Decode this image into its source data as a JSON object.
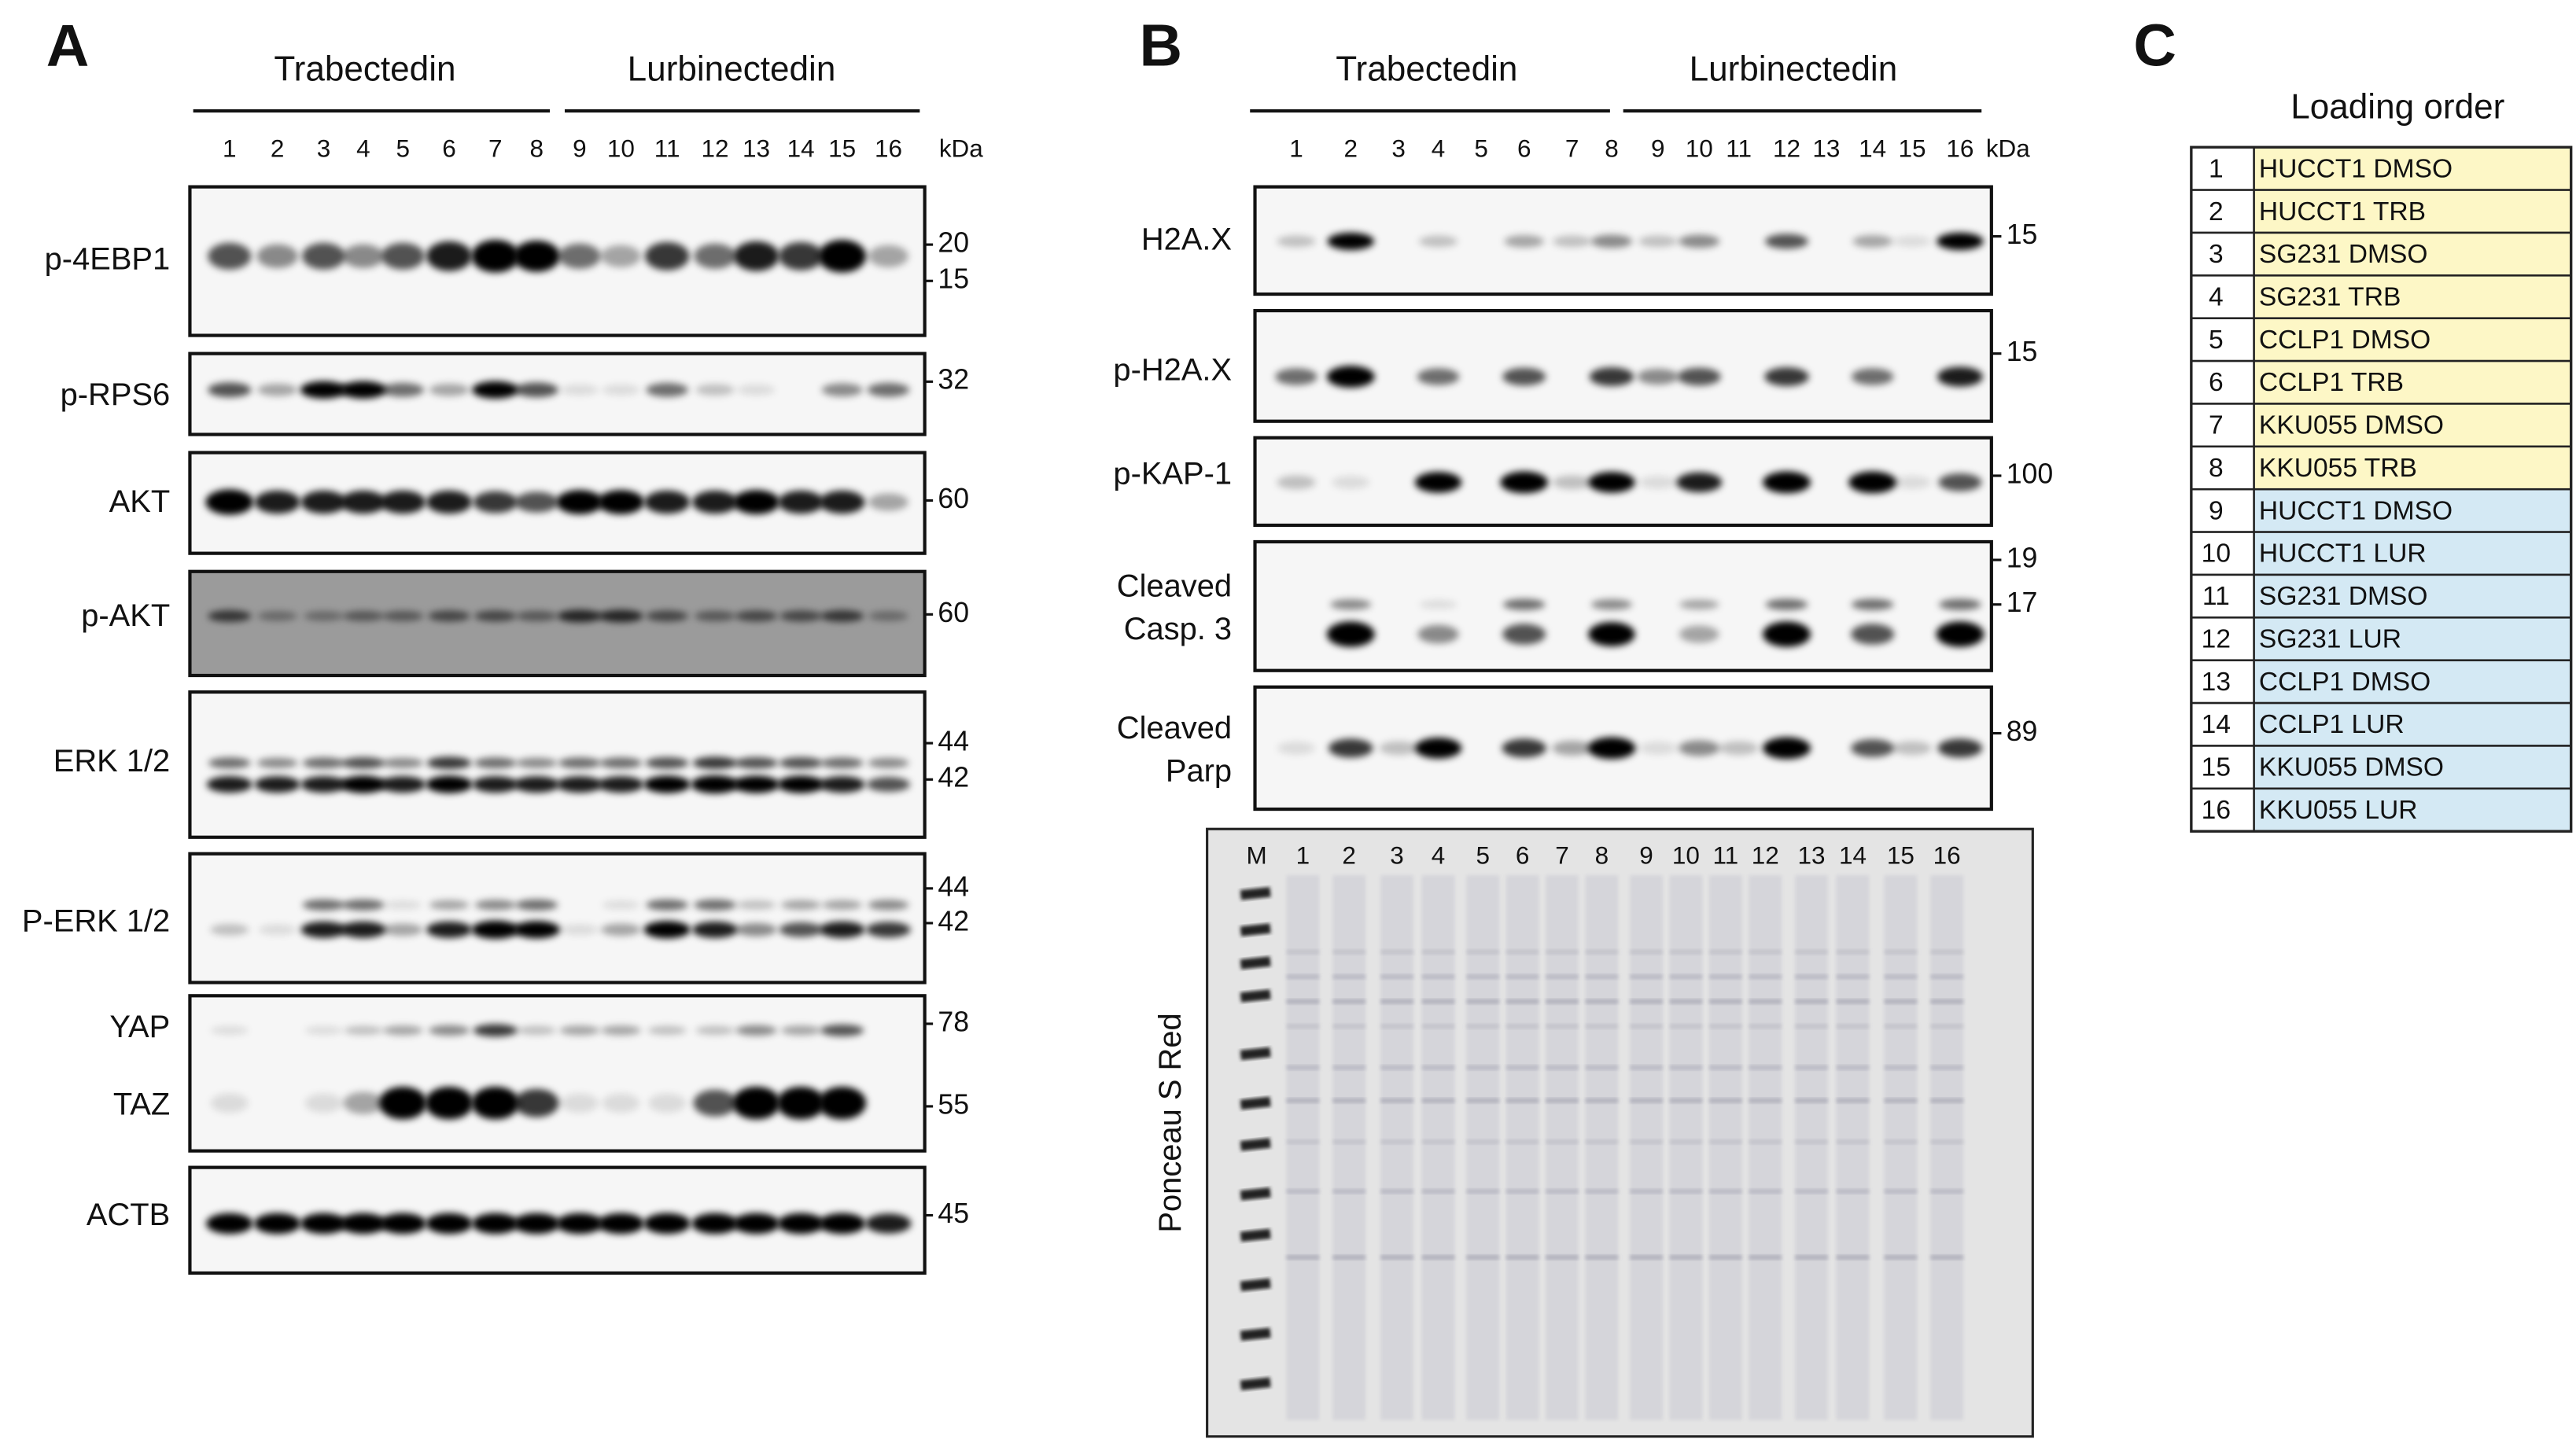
{
  "panel_a": {
    "label": "A",
    "groups": [
      "Trabectedin",
      "Lurbinectedin"
    ],
    "lanes": [
      1,
      2,
      3,
      4,
      5,
      6,
      7,
      8,
      9,
      10,
      11,
      12,
      13,
      14,
      15,
      16
    ],
    "unit": "kDa",
    "blots": [
      {
        "labels": [
          "p-4EBP1"
        ],
        "markers": [
          20,
          15
        ]
      },
      {
        "labels": [
          "p-RPS6"
        ],
        "markers": [
          32
        ]
      },
      {
        "labels": [
          "AKT"
        ],
        "markers": [
          60
        ]
      },
      {
        "labels": [
          "p-AKT"
        ],
        "markers": [
          60
        ]
      },
      {
        "labels": [
          "ERK 1/2"
        ],
        "markers": [
          44,
          42
        ]
      },
      {
        "labels": [
          "P-ERK 1/2"
        ],
        "markers": [
          44,
          42
        ]
      },
      {
        "labels": [
          "YAP",
          "TAZ"
        ],
        "markers": [
          78,
          55
        ]
      },
      {
        "labels": [
          "ACTB"
        ],
        "markers": [
          45
        ]
      }
    ]
  },
  "panel_b": {
    "label": "B",
    "groups": [
      "Trabectedin",
      "Lurbinectedin"
    ],
    "lanes": [
      1,
      2,
      3,
      4,
      5,
      6,
      7,
      8,
      9,
      10,
      11,
      12,
      13,
      14,
      15,
      16
    ],
    "unit": "kDa",
    "blots": [
      {
        "labels": [
          "H2A.X"
        ],
        "markers": [
          15
        ]
      },
      {
        "labels": [
          "p-H2A.X"
        ],
        "markers": [
          15
        ]
      },
      {
        "labels": [
          "p-KAP-1"
        ],
        "markers": [
          100
        ]
      },
      {
        "labels": [
          "Cleaved",
          "Casp. 3"
        ],
        "markers": [
          19,
          17
        ]
      },
      {
        "labels": [
          "Cleaved",
          "Parp"
        ],
        "markers": [
          89
        ]
      }
    ],
    "stain": {
      "label": "Ponceau S Red",
      "lanes": [
        "M",
        "1",
        "2",
        "3",
        "4",
        "5",
        "6",
        "7",
        "8",
        "9",
        "10",
        "11",
        "12",
        "13",
        "14",
        "15",
        "16"
      ]
    }
  },
  "panel_c": {
    "label": "C",
    "title": "Loading order",
    "rows": [
      [
        1,
        "HUCCT1 DMSO"
      ],
      [
        2,
        "HUCCT1 TRB"
      ],
      [
        3,
        "SG231 DMSO"
      ],
      [
        4,
        "SG231 TRB"
      ],
      [
        5,
        "CCLP1 DMSO"
      ],
      [
        6,
        "CCLP1 TRB"
      ],
      [
        7,
        "KKU055 DMSO"
      ],
      [
        8,
        "KKU055 TRB"
      ],
      [
        9,
        "HUCCT1 DMSO"
      ],
      [
        10,
        "HUCCT1 LUR"
      ],
      [
        11,
        "SG231 DMSO"
      ],
      [
        12,
        "SG231 LUR"
      ],
      [
        13,
        "CCLP1 DMSO"
      ],
      [
        14,
        "CCLP1 LUR"
      ],
      [
        15,
        "KKU055 DMSO"
      ],
      [
        16,
        "KKU055 LUR"
      ]
    ]
  }
}
